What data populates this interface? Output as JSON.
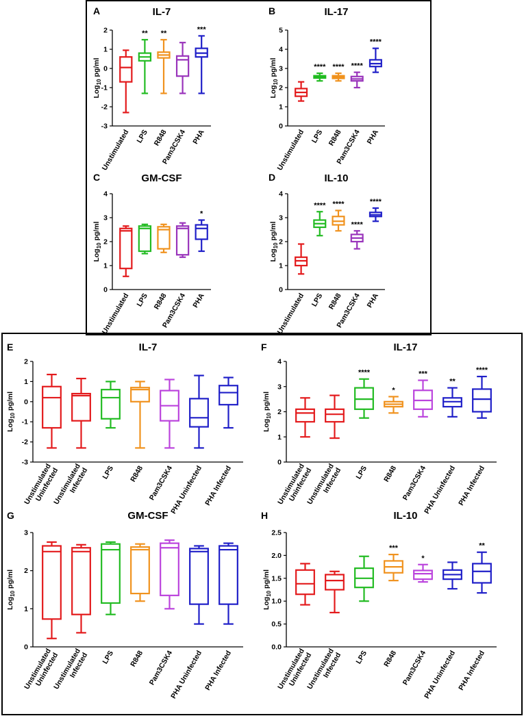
{
  "figure": {
    "y_axis_label": "Log",
    "y_axis_subscript": "10",
    "y_axis_unit": " pg/ml"
  },
  "colors": {
    "red": "#e31a1c",
    "green": "#22bb22",
    "orange": "#f0921e",
    "purple": "#9933bb",
    "magenta": "#bb44dd",
    "blue": "#1f1fc8"
  },
  "chart_data": [
    {
      "id": "A",
      "letter": "A",
      "type": "box",
      "title": "IL-7",
      "ylabel": "Log10 pg/ml",
      "ylim": [
        -3,
        2
      ],
      "yticks": [
        -3,
        -2,
        -1,
        0,
        1,
        2
      ],
      "tick_labels": [
        "-3",
        "-2",
        "-1",
        "0",
        "1",
        "2"
      ],
      "categories": [
        {
          "label": [
            "Unstimulated"
          ],
          "color": "#e31a1c",
          "whisker_low": -2.3,
          "q1": -0.7,
          "median": 0.05,
          "q3": 0.6,
          "whisker_high": 0.95,
          "sig": ""
        },
        {
          "label": [
            "LPS"
          ],
          "color": "#22bb22",
          "whisker_low": -1.3,
          "q1": 0.4,
          "median": 0.6,
          "q3": 0.8,
          "whisker_high": 1.5,
          "sig": "**"
        },
        {
          "label": [
            "R848"
          ],
          "color": "#f0921e",
          "whisker_low": -1.3,
          "q1": 0.55,
          "median": 0.7,
          "q3": 0.85,
          "whisker_high": 1.5,
          "sig": "**"
        },
        {
          "label": [
            "Pam3CSK4"
          ],
          "color": "#9933bb",
          "whisker_low": -1.3,
          "q1": -0.4,
          "median": 0.45,
          "q3": 0.65,
          "whisker_high": 1.35,
          "sig": ""
        },
        {
          "label": [
            "PHA"
          ],
          "color": "#1f1fc8",
          "whisker_low": -1.3,
          "q1": 0.6,
          "median": 0.8,
          "q3": 1.05,
          "whisker_high": 1.7,
          "sig": "***"
        }
      ]
    },
    {
      "id": "B",
      "letter": "B",
      "type": "box",
      "title": "IL-17",
      "ylabel": "Log10 pg/ml",
      "ylim": [
        0,
        5
      ],
      "yticks": [
        0,
        1,
        2,
        3,
        4,
        5
      ],
      "tick_labels": [
        "0",
        "1",
        "2",
        "3",
        "4",
        "5"
      ],
      "categories": [
        {
          "label": [
            "Unstimulated"
          ],
          "color": "#e31a1c",
          "whisker_low": 1.3,
          "q1": 1.55,
          "median": 1.75,
          "q3": 1.95,
          "whisker_high": 2.3,
          "sig": ""
        },
        {
          "label": [
            "LPS"
          ],
          "color": "#22bb22",
          "whisker_low": 2.35,
          "q1": 2.5,
          "median": 2.55,
          "q3": 2.62,
          "whisker_high": 2.75,
          "sig": "****"
        },
        {
          "label": [
            "R848"
          ],
          "color": "#f0921e",
          "whisker_low": 2.35,
          "q1": 2.48,
          "median": 2.55,
          "q3": 2.62,
          "whisker_high": 2.75,
          "sig": "****"
        },
        {
          "label": [
            "Pam3CSK4"
          ],
          "color": "#9933bb",
          "whisker_low": 2.0,
          "q1": 2.35,
          "median": 2.45,
          "q3": 2.58,
          "whisker_high": 2.8,
          "sig": "****"
        },
        {
          "label": [
            "PHA"
          ],
          "color": "#1f1fc8",
          "whisker_low": 2.8,
          "q1": 3.1,
          "median": 3.25,
          "q3": 3.45,
          "whisker_high": 4.05,
          "sig": "****"
        }
      ]
    },
    {
      "id": "C",
      "letter": "C",
      "type": "box",
      "title": "GM-CSF",
      "ylabel": "Log10 pg/ml",
      "ylim": [
        0,
        4
      ],
      "yticks": [
        0,
        1,
        2,
        3,
        4
      ],
      "tick_labels": [
        "0",
        "1",
        "2",
        "3",
        "4"
      ],
      "categories": [
        {
          "label": [
            "Unstimulated"
          ],
          "color": "#e31a1c",
          "whisker_low": 0.55,
          "q1": 0.88,
          "median": 2.45,
          "q3": 2.55,
          "whisker_high": 2.65,
          "sig": ""
        },
        {
          "label": [
            "LPS"
          ],
          "color": "#22bb22",
          "whisker_low": 1.5,
          "q1": 1.6,
          "median": 2.55,
          "q3": 2.65,
          "whisker_high": 2.72,
          "sig": ""
        },
        {
          "label": [
            "R848"
          ],
          "color": "#f0921e",
          "whisker_low": 1.55,
          "q1": 1.7,
          "median": 2.5,
          "q3": 2.62,
          "whisker_high": 2.72,
          "sig": ""
        },
        {
          "label": [
            "Pam3CSK4"
          ],
          "color": "#9933bb",
          "whisker_low": 1.35,
          "q1": 1.45,
          "median": 2.55,
          "q3": 2.65,
          "whisker_high": 2.78,
          "sig": ""
        },
        {
          "label": [
            "PHA"
          ],
          "color": "#1f1fc8",
          "whisker_low": 1.6,
          "q1": 2.1,
          "median": 2.55,
          "q3": 2.7,
          "whisker_high": 2.9,
          "sig": "*"
        }
      ]
    },
    {
      "id": "D",
      "letter": "D",
      "type": "box",
      "title": "IL-10",
      "ylabel": "Log10 pg/ml",
      "ylim": [
        0,
        4
      ],
      "yticks": [
        0,
        1,
        2,
        3,
        4
      ],
      "tick_labels": [
        "0",
        "1",
        "2",
        "3",
        "4"
      ],
      "categories": [
        {
          "label": [
            "Unstimulated"
          ],
          "color": "#e31a1c",
          "whisker_low": 0.65,
          "q1": 1.0,
          "median": 1.2,
          "q3": 1.35,
          "whisker_high": 1.9,
          "sig": ""
        },
        {
          "label": [
            "LPS"
          ],
          "color": "#22bb22",
          "whisker_low": 2.25,
          "q1": 2.6,
          "median": 2.75,
          "q3": 2.9,
          "whisker_high": 3.25,
          "sig": "****"
        },
        {
          "label": [
            "R848"
          ],
          "color": "#f0921e",
          "whisker_low": 2.45,
          "q1": 2.7,
          "median": 2.85,
          "q3": 3.05,
          "whisker_high": 3.3,
          "sig": "****"
        },
        {
          "label": [
            "Pam3CSK4"
          ],
          "color": "#9933bb",
          "whisker_low": 1.7,
          "q1": 2.0,
          "median": 2.15,
          "q3": 2.3,
          "whisker_high": 2.45,
          "sig": "****"
        },
        {
          "label": [
            "PHA"
          ],
          "color": "#1f1fc8",
          "whisker_low": 2.85,
          "q1": 3.05,
          "median": 3.12,
          "q3": 3.22,
          "whisker_high": 3.4,
          "sig": "****"
        }
      ]
    },
    {
      "id": "E",
      "letter": "E",
      "type": "box",
      "title": "IL-7",
      "ylabel": "Log10 pg/ml",
      "ylim": [
        -3,
        2
      ],
      "yticks": [
        -3,
        -2,
        -1,
        0,
        1,
        2
      ],
      "tick_labels": [
        "-3",
        "-2",
        "-1",
        "0",
        "1",
        "2"
      ],
      "categories": [
        {
          "label": [
            "Unstimulated",
            "Uninfected"
          ],
          "color": "#e31a1c",
          "whisker_low": -2.3,
          "q1": -1.3,
          "median": 0.2,
          "q3": 0.75,
          "whisker_high": 1.35,
          "sig": ""
        },
        {
          "label": [
            "Unstimulated",
            "Infected"
          ],
          "color": "#e31a1c",
          "whisker_low": -2.3,
          "q1": -0.95,
          "median": 0.3,
          "q3": 0.4,
          "whisker_high": 1.15,
          "sig": ""
        },
        {
          "label": [
            "LPS"
          ],
          "color": "#22bb22",
          "whisker_low": -1.3,
          "q1": -0.85,
          "median": 0.2,
          "q3": 0.6,
          "whisker_high": 1.0,
          "sig": ""
        },
        {
          "label": [
            "R848"
          ],
          "color": "#f0921e",
          "whisker_low": -2.3,
          "q1": 0.0,
          "median": 0.6,
          "q3": 0.7,
          "whisker_high": 1.0,
          "sig": ""
        },
        {
          "label": [
            "Pam3CSK4"
          ],
          "color": "#bb44dd",
          "whisker_low": -2.3,
          "q1": -0.95,
          "median": -0.2,
          "q3": 0.55,
          "whisker_high": 1.1,
          "sig": ""
        },
        {
          "label": [
            "PHA Uninfected"
          ],
          "color": "#1f1fc8",
          "whisker_low": -2.3,
          "q1": -1.25,
          "median": -0.8,
          "q3": 0.15,
          "whisker_high": 1.3,
          "sig": ""
        },
        {
          "label": [
            "PHA Infected"
          ],
          "color": "#1f1fc8",
          "whisker_low": -1.3,
          "q1": -0.15,
          "median": 0.45,
          "q3": 0.8,
          "whisker_high": 1.2,
          "sig": ""
        }
      ]
    },
    {
      "id": "F",
      "letter": "F",
      "type": "box",
      "title": "IL-17",
      "ylabel": "Log10 pg/ml",
      "ylim": [
        0,
        4
      ],
      "yticks": [
        0,
        1,
        2,
        3,
        4
      ],
      "tick_labels": [
        "0",
        "1",
        "2",
        "3",
        "4"
      ],
      "categories": [
        {
          "label": [
            "Unstimulated",
            "Uninfected"
          ],
          "color": "#e31a1c",
          "whisker_low": 1.0,
          "q1": 1.6,
          "median": 1.95,
          "q3": 2.1,
          "whisker_high": 2.55,
          "sig": ""
        },
        {
          "label": [
            "Unstimulated",
            "Infected"
          ],
          "color": "#e31a1c",
          "whisker_low": 0.95,
          "q1": 1.6,
          "median": 1.9,
          "q3": 2.1,
          "whisker_high": 2.65,
          "sig": ""
        },
        {
          "label": [
            "LPS"
          ],
          "color": "#22bb22",
          "whisker_low": 1.75,
          "q1": 2.1,
          "median": 2.5,
          "q3": 2.95,
          "whisker_high": 3.3,
          "sig": "****"
        },
        {
          "label": [
            "R848"
          ],
          "color": "#f0921e",
          "whisker_low": 1.95,
          "q1": 2.2,
          "median": 2.3,
          "q3": 2.4,
          "whisker_high": 2.6,
          "sig": "*"
        },
        {
          "label": [
            "Pam3CSK4"
          ],
          "color": "#bb44dd",
          "whisker_low": 1.8,
          "q1": 2.1,
          "median": 2.45,
          "q3": 2.85,
          "whisker_high": 3.25,
          "sig": "***"
        },
        {
          "label": [
            "PHA Uninfected"
          ],
          "color": "#1f1fc8",
          "whisker_low": 1.8,
          "q1": 2.2,
          "median": 2.4,
          "q3": 2.55,
          "whisker_high": 2.95,
          "sig": "**"
        },
        {
          "label": [
            "PHA Infected"
          ],
          "color": "#1f1fc8",
          "whisker_low": 1.75,
          "q1": 2.0,
          "median": 2.5,
          "q3": 2.9,
          "whisker_high": 3.4,
          "sig": "****"
        }
      ]
    },
    {
      "id": "G",
      "letter": "G",
      "type": "box",
      "title": "GM-CSF",
      "ylabel": "Log10 pg/ml",
      "ylim": [
        0,
        3
      ],
      "yticks": [
        0,
        1,
        2,
        3
      ],
      "tick_labels": [
        "0",
        "1",
        "2",
        "3"
      ],
      "categories": [
        {
          "label": [
            "Unstimulated",
            "Uninfected"
          ],
          "color": "#e31a1c",
          "whisker_low": 0.22,
          "q1": 0.73,
          "median": 2.5,
          "q3": 2.65,
          "whisker_high": 2.75,
          "sig": ""
        },
        {
          "label": [
            "Unstimulated",
            "Infected"
          ],
          "color": "#e31a1c",
          "whisker_low": 0.37,
          "q1": 0.85,
          "median": 2.5,
          "q3": 2.6,
          "whisker_high": 2.68,
          "sig": ""
        },
        {
          "label": [
            "LPS"
          ],
          "color": "#22bb22",
          "whisker_low": 0.85,
          "q1": 1.15,
          "median": 2.55,
          "q3": 2.7,
          "whisker_high": 2.75,
          "sig": ""
        },
        {
          "label": [
            "R848"
          ],
          "color": "#f0921e",
          "whisker_low": 1.2,
          "q1": 1.4,
          "median": 2.55,
          "q3": 2.62,
          "whisker_high": 2.7,
          "sig": ""
        },
        {
          "label": [
            "Pam3CSK4"
          ],
          "color": "#bb44dd",
          "whisker_low": 1.0,
          "q1": 1.35,
          "median": 2.6,
          "q3": 2.72,
          "whisker_high": 2.8,
          "sig": ""
        },
        {
          "label": [
            "PHA Uninfected"
          ],
          "color": "#1f1fc8",
          "whisker_low": 0.6,
          "q1": 1.12,
          "median": 2.5,
          "q3": 2.58,
          "whisker_high": 2.65,
          "sig": ""
        },
        {
          "label": [
            "PHA Infected"
          ],
          "color": "#1f1fc8",
          "whisker_low": 0.6,
          "q1": 1.12,
          "median": 2.55,
          "q3": 2.65,
          "whisker_high": 2.72,
          "sig": ""
        }
      ]
    },
    {
      "id": "H",
      "letter": "H",
      "type": "box",
      "title": "IL-10",
      "ylabel": "Log10 pg/ml",
      "ylim": [
        0,
        2.5
      ],
      "yticks": [
        0,
        0.5,
        1.0,
        1.5,
        2.0,
        2.5
      ],
      "tick_labels": [
        "0.0",
        "0.5",
        "1.0",
        "1.5",
        "2.0",
        "2.5"
      ],
      "categories": [
        {
          "label": [
            "Unstimulated",
            "Uninfected"
          ],
          "color": "#e31a1c",
          "whisker_low": 0.92,
          "q1": 1.15,
          "median": 1.38,
          "q3": 1.68,
          "whisker_high": 1.82,
          "sig": ""
        },
        {
          "label": [
            "Unstimulated",
            "Infected"
          ],
          "color": "#e31a1c",
          "whisker_low": 0.75,
          "q1": 1.25,
          "median": 1.45,
          "q3": 1.58,
          "whisker_high": 1.65,
          "sig": ""
        },
        {
          "label": [
            "LPS"
          ],
          "color": "#22bb22",
          "whisker_low": 1.0,
          "q1": 1.3,
          "median": 1.5,
          "q3": 1.72,
          "whisker_high": 1.98,
          "sig": ""
        },
        {
          "label": [
            "R848"
          ],
          "color": "#f0921e",
          "whisker_low": 1.45,
          "q1": 1.62,
          "median": 1.75,
          "q3": 1.88,
          "whisker_high": 2.02,
          "sig": "***"
        },
        {
          "label": [
            "Pam3CSK4"
          ],
          "color": "#bb44dd",
          "whisker_low": 1.42,
          "q1": 1.48,
          "median": 1.6,
          "q3": 1.67,
          "whisker_high": 1.8,
          "sig": "*"
        },
        {
          "label": [
            "PHA Uninfected"
          ],
          "color": "#1f1fc8",
          "whisker_low": 1.27,
          "q1": 1.48,
          "median": 1.58,
          "q3": 1.68,
          "whisker_high": 1.85,
          "sig": ""
        },
        {
          "label": [
            "PHA Infected"
          ],
          "color": "#1f1fc8",
          "whisker_low": 1.18,
          "q1": 1.4,
          "median": 1.65,
          "q3": 1.82,
          "whisker_high": 2.07,
          "sig": "**"
        }
      ]
    }
  ]
}
